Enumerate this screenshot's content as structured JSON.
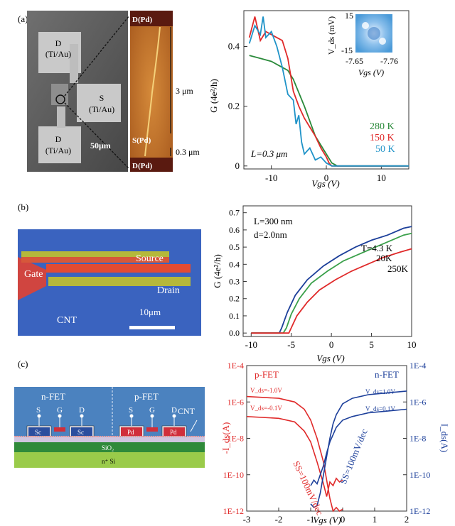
{
  "panels": {
    "a": {
      "label": "(a)",
      "sem": {
        "pad_D_top": "D",
        "pad_D_top_metal": "(Ti/Au)",
        "pad_S": "S",
        "pad_S_metal": "(Ti/Au)",
        "pad_D_bottom": "D",
        "pad_D_bottom_metal": "(Ti/Au)",
        "scale_text": "50μm"
      },
      "afm": {
        "top_label": "D(Pd)",
        "mid_label": "S(Pd)",
        "bottom_label": "D(Pd)",
        "length_long": "3 μm",
        "length_short": "0.3 μm"
      },
      "inset": {
        "ylabel": "V_ds (mV)",
        "ytick_top": "15",
        "ytick_bottom": "-15",
        "xtick_left": "-7.65",
        "xtick_right": "-7.76",
        "xlabel": "Vgs (V)"
      },
      "annotation_L": "L=0.3 μm"
    },
    "b": {
      "label": "(b)",
      "sem": {
        "gate": "Gate",
        "source": "Source",
        "drain": "Drain",
        "cnt": "CNT",
        "scale_text": "10μm"
      },
      "annotation_L": "L=300 nm",
      "annotation_d": "d=2.0nm"
    },
    "c": {
      "label": "(c)",
      "schematic": {
        "nfet": "n-FET",
        "pfet": "p-FET",
        "cnt": "CNT",
        "s": "S",
        "g": "G",
        "d": "D",
        "sc": "Sc",
        "pd": "Pd",
        "sio2": "SiO₂",
        "si": "n⁺ Si"
      },
      "left_axis_label": "-I_ds(A)",
      "right_axis_label": "I_ds(A)",
      "pfet_label": "p-FET",
      "nfet_label": "n-FET",
      "vds_p_high": "V_ds=-1.0V",
      "vds_p_low": "V_ds=-0.1V",
      "vds_n_high": "V_ds=1.0V",
      "vds_n_low": "V_ds=0.1V",
      "ss_p": "SS=100mV/dec",
      "ss_n": "SS=100mV/dec"
    }
  },
  "colors": {
    "green": "#2a8a3a",
    "red": "#e02a2a",
    "blue": "#1f93c8",
    "navy": "#1c3f9a"
  },
  "chart_data": [
    {
      "type": "line",
      "panel": "a",
      "xlabel": "Vgs (V)",
      "ylabel": "G (4e²/h)",
      "xlim": [
        -15,
        15
      ],
      "ylim": [
        -0.01,
        0.52
      ],
      "xticks": [
        -10,
        0,
        10
      ],
      "yticks": [
        0,
        0.2,
        0.4
      ],
      "series": [
        {
          "name": "280 K",
          "color": "#2a8a3a",
          "x": [
            -14,
            -12,
            -10,
            -8,
            -7,
            -6,
            -4,
            -2,
            0,
            1,
            2,
            4,
            15
          ],
          "y": [
            0.37,
            0.36,
            0.35,
            0.33,
            0.32,
            0.29,
            0.2,
            0.1,
            0.04,
            0.01,
            0.0,
            0.0,
            0.0
          ]
        },
        {
          "name": "150 K",
          "color": "#e02a2a",
          "x": [
            -14,
            -13,
            -12,
            -11,
            -10,
            -9,
            -8,
            -7,
            -6,
            -5,
            -4,
            -3,
            -2,
            -1,
            0,
            0.5,
            1,
            15
          ],
          "y": [
            0.43,
            0.5,
            0.42,
            0.45,
            0.44,
            0.43,
            0.42,
            0.36,
            0.25,
            0.2,
            0.16,
            0.13,
            0.1,
            0.06,
            0.03,
            0.01,
            0.0,
            0.0
          ]
        },
        {
          "name": "50 K",
          "color": "#1f93c8",
          "x": [
            -14,
            -13,
            -12,
            -11.5,
            -11,
            -10,
            -9,
            -8,
            -7,
            -6,
            -5.5,
            -5,
            -4.5,
            -4,
            -3,
            -2,
            -1,
            0,
            1,
            15
          ],
          "y": [
            0.41,
            0.47,
            0.44,
            0.5,
            0.43,
            0.45,
            0.4,
            0.33,
            0.24,
            0.22,
            0.14,
            0.17,
            0.08,
            0.04,
            0.06,
            0.02,
            0.03,
            0.01,
            0.0,
            0.0
          ]
        }
      ]
    },
    {
      "type": "line",
      "panel": "b",
      "xlabel": "Vgs (V)",
      "ylabel": "G (4e²/h)",
      "xlim": [
        -11,
        10
      ],
      "ylim": [
        -0.02,
        0.74
      ],
      "xticks": [
        -10,
        -5,
        0,
        5,
        10
      ],
      "yticks": [
        0.0,
        0.1,
        0.2,
        0.3,
        0.4,
        0.5,
        0.6,
        0.7
      ],
      "series": [
        {
          "name": "T=4.3 K",
          "color": "#1c3f9a",
          "x": [
            -10,
            -6.5,
            -6.2,
            -5.5,
            -4.5,
            -3,
            -1,
            1,
            3,
            5,
            7,
            9,
            10
          ],
          "y": [
            0,
            0,
            0.03,
            0.12,
            0.22,
            0.31,
            0.39,
            0.45,
            0.5,
            0.54,
            0.57,
            0.61,
            0.62
          ]
        },
        {
          "name": "20K",
          "color": "#3aa04a",
          "x": [
            -10,
            -6,
            -5.6,
            -5,
            -4,
            -2.5,
            -0.5,
            1.5,
            3.5,
            5.5,
            7.5,
            9,
            10
          ],
          "y": [
            0,
            0,
            0.03,
            0.11,
            0.2,
            0.29,
            0.36,
            0.42,
            0.46,
            0.5,
            0.54,
            0.57,
            0.58
          ]
        },
        {
          "name": "250K",
          "color": "#e02a2a",
          "x": [
            -10,
            -5.3,
            -5,
            -4.3,
            -3,
            -1.5,
            0.5,
            2.5,
            4.5,
            6.5,
            8.5,
            10
          ],
          "y": [
            0,
            0,
            0.03,
            0.1,
            0.18,
            0.25,
            0.31,
            0.36,
            0.4,
            0.44,
            0.47,
            0.49
          ]
        }
      ],
      "labels": [
        "T=4.3 K",
        "20K",
        "250K"
      ]
    },
    {
      "type": "line",
      "panel": "c",
      "xlabel": "Vgs (V)",
      "xlim": [
        -3,
        2
      ],
      "xticks": [
        -3,
        -2,
        -1,
        0,
        1,
        2
      ],
      "left_ylabel": "-I_ds(A)",
      "right_ylabel": "I_ds(A)",
      "ylog": true,
      "ylim_exp": [
        -12,
        -4
      ],
      "yticks": [
        "1E-12",
        "1E-10",
        "1E-8",
        "1E-6",
        "1E-4"
      ],
      "series": [
        {
          "name": "p-FET V_ds=-1.0V",
          "color": "#e02a2a",
          "x": [
            -3,
            -2,
            -1.5,
            -1.2,
            -1.0,
            -0.8,
            -0.6,
            -0.5,
            -0.4,
            -0.3,
            -0.2,
            -0.1,
            0
          ],
          "y_exp": [
            -5.7,
            -5.8,
            -6.0,
            -6.4,
            -7.0,
            -8.0,
            -9.3,
            -10.3,
            -11.3,
            -12.0,
            -11.8,
            -12.0,
            -11.9
          ]
        },
        {
          "name": "p-FET V_ds=-0.1V",
          "color": "#e02a2a",
          "x": [
            -3,
            -2,
            -1.5,
            -1.2,
            -1.0,
            -0.8,
            -0.6,
            -0.5,
            -0.4,
            -0.3,
            -0.2,
            -0.1,
            0
          ],
          "y_exp": [
            -6.8,
            -6.9,
            -7.1,
            -7.6,
            -8.2,
            -9.3,
            -10.5,
            -11.2,
            -10.4,
            -10.6,
            -10.2,
            -10.4,
            -10.3
          ]
        },
        {
          "name": "n-FET V_ds=1.0V",
          "color": "#1c3f9a",
          "x": [
            -1,
            -0.9,
            -0.8,
            -0.7,
            -0.6,
            -0.5,
            -0.4,
            -0.3,
            -0.2,
            0,
            0.3,
            0.8,
            1.4,
            2
          ],
          "y_exp": [
            -11.6,
            -11.8,
            -11.7,
            -11.0,
            -10.0,
            -9.0,
            -8.0,
            -7.2,
            -6.7,
            -6.1,
            -5.8,
            -5.6,
            -5.5,
            -5.4
          ]
        },
        {
          "name": "n-FET V_ds=0.1V",
          "color": "#1c3f9a",
          "x": [
            -1,
            -0.9,
            -0.8,
            -0.7,
            -0.6,
            -0.5,
            -0.4,
            -0.3,
            -0.2,
            0,
            0.3,
            0.8,
            1.4,
            2
          ],
          "y_exp": [
            -10.6,
            -10.3,
            -10.5,
            -10.0,
            -9.5,
            -8.8,
            -8.2,
            -7.8,
            -7.4,
            -7.0,
            -6.8,
            -6.6,
            -6.5,
            -6.4
          ]
        }
      ]
    }
  ]
}
